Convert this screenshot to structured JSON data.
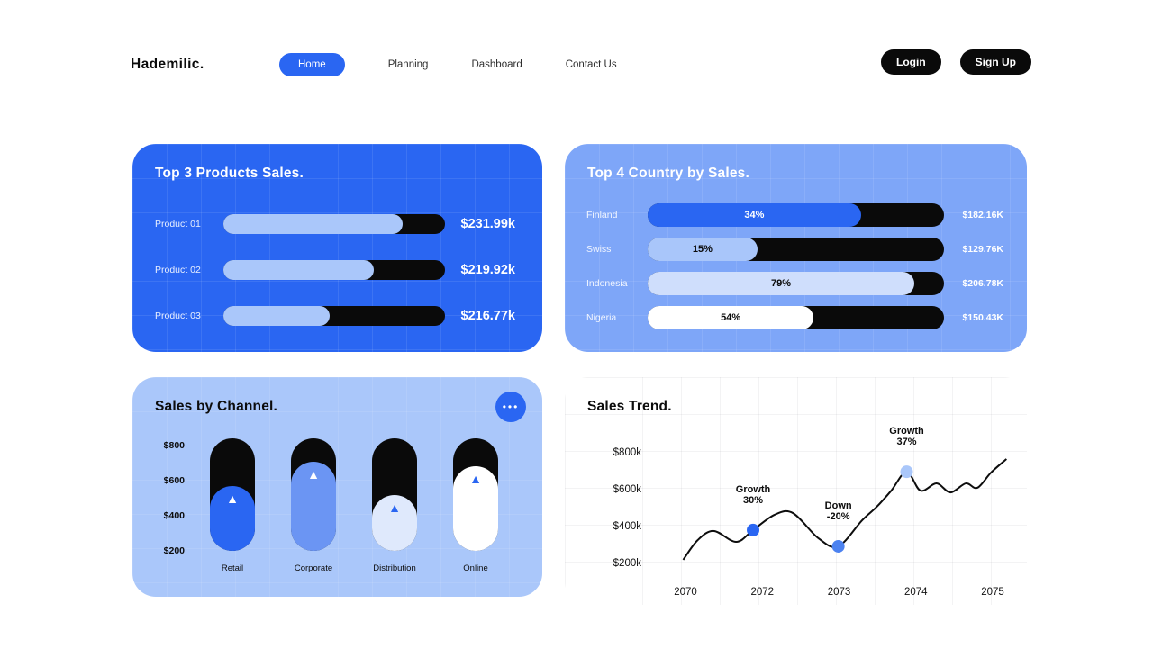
{
  "brand": "Hademilic.",
  "nav": {
    "items": [
      {
        "label": "Home",
        "active": true
      },
      {
        "label": "Planning",
        "active": false
      },
      {
        "label": "Dashboard",
        "active": false
      },
      {
        "label": "Contact Us",
        "active": false
      }
    ]
  },
  "auth": {
    "login": "Login",
    "signup": "Sign Up"
  },
  "colors": {
    "primary": "#2a66f2",
    "card_products": "#2a66f2",
    "card_countries": "#7ea6f8",
    "card_channels": "#aac7fa",
    "bar_black": "#0a0a0a",
    "pale_fill": "#aac7fa"
  },
  "icons": {
    "more": "•••",
    "triangle_up": "▲"
  },
  "chart_data": [
    {
      "type": "bar",
      "title": "Top 3 Products Sales.",
      "categories": [
        "Product 01",
        "Product 02",
        "Product 03"
      ],
      "values": [
        "$231.99k",
        "$219.92k",
        "$216.77k"
      ],
      "fill_pct": [
        81,
        68,
        48
      ]
    },
    {
      "type": "bar",
      "title": "Top 4 Country by Sales.",
      "categories": [
        "Finland",
        "Swiss",
        "Indonesia",
        "Nigeria"
      ],
      "pct": [
        34,
        15,
        79,
        54
      ],
      "values": [
        "$182.16K",
        "$129.76K",
        "$206.78K",
        "$150.43K"
      ],
      "fill_pct": [
        72,
        37,
        90,
        56
      ],
      "fill_colors": [
        "#2a66f2",
        "#a9c6fa",
        "#cfdefc",
        "#ffffff"
      ],
      "label_colors": [
        "#ffffff",
        "#0a0a0a",
        "#0a0a0a",
        "#0a0a0a"
      ]
    },
    {
      "type": "bar",
      "title": "Sales by Channel.",
      "y_ticks": [
        "$800",
        "$600",
        "$400",
        "$200"
      ],
      "categories": [
        "Retail",
        "Corporate",
        "Distribution",
        "Online"
      ],
      "inner_pct": [
        58,
        79,
        50,
        75
      ],
      "inner_colors": [
        "#2a66f2",
        "#6b95f3",
        "#dfe9fc",
        "#ffffff"
      ],
      "triangle_colors": [
        "#ffffff",
        "#ffffff",
        "#2a66f2",
        "#2a66f2"
      ]
    },
    {
      "type": "line",
      "title": "Sales Trend.",
      "y_ticks": [
        "$800k",
        "$600k",
        "$400k",
        "$200k"
      ],
      "x_ticks": [
        "2070",
        "2072",
        "2073",
        "2074",
        "2075"
      ],
      "ylim": [
        200,
        800
      ],
      "points": [
        [
          -0.03,
          215
        ],
        [
          0.16,
          322
        ],
        [
          0.37,
          371
        ],
        [
          0.66,
          312
        ],
        [
          0.88,
          376
        ],
        [
          1.16,
          459
        ],
        [
          1.4,
          468
        ],
        [
          1.73,
          332
        ],
        [
          1.99,
          288
        ],
        [
          2.3,
          429
        ],
        [
          2.49,
          502
        ],
        [
          2.68,
          590
        ],
        [
          2.88,
          692
        ],
        [
          3.06,
          590
        ],
        [
          3.27,
          629
        ],
        [
          3.45,
          580
        ],
        [
          3.65,
          629
        ],
        [
          3.8,
          605
        ],
        [
          3.98,
          688
        ],
        [
          4.18,
          761
        ]
      ],
      "annotations": [
        {
          "label": "Growth",
          "value": "30%",
          "x": 0.88,
          "y": 376,
          "dot_color": "#2a66f2"
        },
        {
          "label": "Down",
          "value": "-20%",
          "x": 1.99,
          "y": 288,
          "dot_color": "#4c82f0"
        },
        {
          "label": "Growth",
          "value": "37%",
          "x": 2.88,
          "y": 692,
          "dot_color": "#aac7fa"
        }
      ]
    }
  ]
}
